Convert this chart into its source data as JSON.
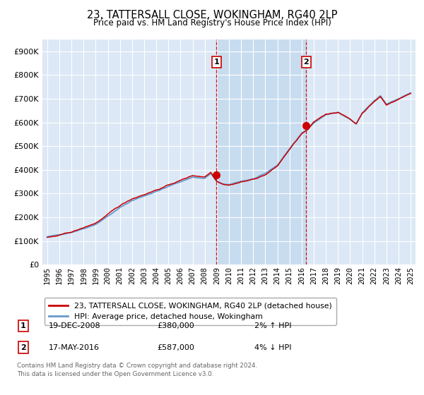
{
  "title": "23, TATTERSALL CLOSE, WOKINGHAM, RG40 2LP",
  "subtitle": "Price paid vs. HM Land Registry's House Price Index (HPI)",
  "ylim": [
    0,
    950000
  ],
  "yticks": [
    0,
    100000,
    200000,
    300000,
    400000,
    500000,
    600000,
    700000,
    800000,
    900000
  ],
  "transaction1": {
    "date": "19-DEC-2008",
    "price": 380000,
    "label": "1",
    "hpi_diff": "2% ↑ HPI",
    "year": 2008.96
  },
  "transaction2": {
    "date": "17-MAY-2016",
    "price": 587000,
    "label": "2",
    "hpi_diff": "4% ↓ HPI",
    "year": 2016.37
  },
  "legend_entry1": "23, TATTERSALL CLOSE, WOKINGHAM, RG40 2LP (detached house)",
  "legend_entry2": "HPI: Average price, detached house, Wokingham",
  "footnote": "Contains HM Land Registry data © Crown copyright and database right 2024.\nThis data is licensed under the Open Government Licence v3.0.",
  "hpi_color": "#6699cc",
  "price_color": "#cc0000",
  "background_color": "#ffffff",
  "plot_bg_color": "#dce8f5",
  "shade_color": "#c8dcf0",
  "grid_color": "#ffffff",
  "vline_color": "#cc0000",
  "anchor_years": [
    1995,
    1996,
    1997,
    1998,
    1999,
    2000,
    2001,
    2002,
    2003,
    2004,
    2005,
    2006,
    2007,
    2008,
    2008.5,
    2009,
    2009.5,
    2010,
    2011,
    2012,
    2013,
    2014,
    2015,
    2016,
    2016.5,
    2017,
    2018,
    2019,
    2020,
    2020.5,
    2021,
    2022,
    2022.5,
    2023,
    2024,
    2025
  ],
  "anchor_hpi": [
    118000,
    125000,
    138000,
    155000,
    175000,
    210000,
    245000,
    275000,
    295000,
    315000,
    335000,
    355000,
    375000,
    370000,
    390000,
    355000,
    345000,
    340000,
    355000,
    365000,
    385000,
    420000,
    490000,
    555000,
    570000,
    600000,
    635000,
    645000,
    615000,
    595000,
    640000,
    690000,
    710000,
    675000,
    700000,
    725000
  ],
  "anchor_price": [
    115000,
    122000,
    135000,
    152000,
    172000,
    207000,
    242000,
    272000,
    292000,
    312000,
    332000,
    352000,
    372000,
    368000,
    388000,
    352000,
    342000,
    338000,
    352000,
    362000,
    382000,
    418000,
    488000,
    552000,
    568000,
    598000,
    632000,
    642000,
    612000,
    592000,
    638000,
    688000,
    708000,
    672000,
    698000,
    722000
  ],
  "xlim_left": 1994.6,
  "xlim_right": 2025.4
}
